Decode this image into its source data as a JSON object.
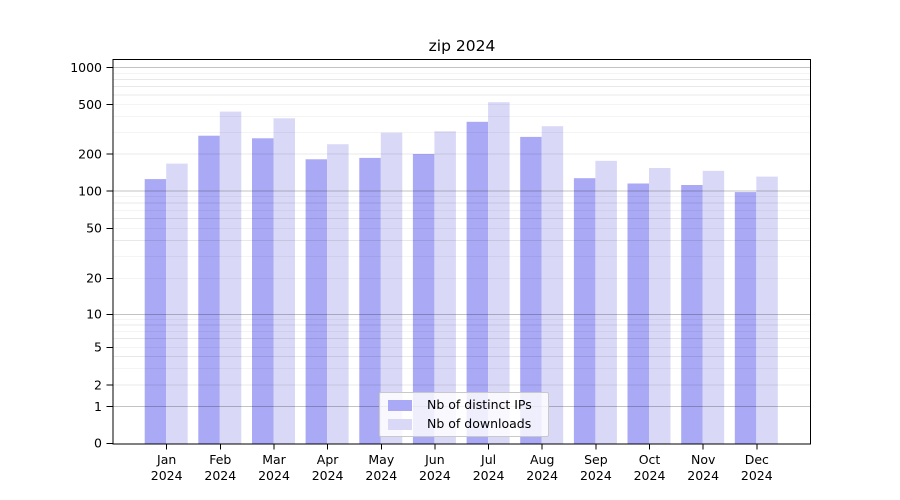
{
  "title": "zip 2024",
  "chart_data": {
    "type": "bar",
    "title": "zip 2024",
    "categories": [
      "Jan",
      "Feb",
      "Mar",
      "Apr",
      "May",
      "Jun",
      "Jul",
      "Aug",
      "Sep",
      "Oct",
      "Nov",
      "Dec"
    ],
    "x_tick_second_line": "2024",
    "series": [
      {
        "name": "Nb of distinct IPs",
        "color": "#a9a9f5",
        "values": [
          125,
          281,
          268,
          181,
          186,
          200,
          364,
          275,
          127,
          115,
          112,
          98
        ]
      },
      {
        "name": "Nb of downloads",
        "color": "#d9d9f7",
        "values": [
          167,
          440,
          388,
          240,
          297,
          305,
          524,
          335,
          176,
          154,
          146,
          131
        ]
      }
    ],
    "yscale": "symlog",
    "y_ticks": [
      0,
      1,
      2,
      5,
      10,
      20,
      50,
      100,
      200,
      500,
      1000
    ],
    "ylim": [
      0,
      1160
    ],
    "grid": true,
    "legend_position": "lower center",
    "axis_color": "#000000",
    "major_grid_color": "#c3c3c3",
    "minor_grid_color": "#e8e8e8"
  }
}
